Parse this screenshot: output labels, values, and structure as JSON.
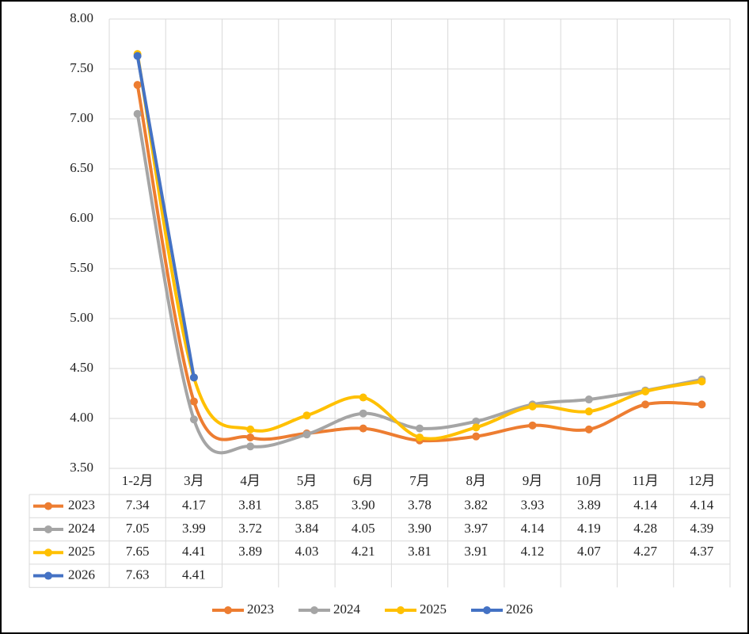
{
  "chart_data": {
    "type": "line",
    "categories": [
      "1-2月",
      "3月",
      "4月",
      "5月",
      "6月",
      "7月",
      "8月",
      "9月",
      "10月",
      "11月",
      "12月"
    ],
    "series": [
      {
        "name": "2023",
        "color": "#ed7d31",
        "values": [
          7.34,
          4.17,
          3.81,
          3.85,
          3.9,
          3.78,
          3.82,
          3.93,
          3.89,
          4.14,
          4.14
        ],
        "value_labels": [
          "7.34",
          "4.17",
          "3.81",
          "3.85",
          "3.90",
          "3.78",
          "3.82",
          "3.93",
          "3.89",
          "4.14",
          "4.14"
        ]
      },
      {
        "name": "2024",
        "color": "#a5a5a5",
        "values": [
          7.05,
          3.99,
          3.72,
          3.84,
          4.05,
          3.9,
          3.97,
          4.14,
          4.19,
          4.28,
          4.39
        ],
        "value_labels": [
          "7.05",
          "3.99",
          "3.72",
          "3.84",
          "4.05",
          "3.90",
          "3.97",
          "4.14",
          "4.19",
          "4.28",
          "4.39"
        ]
      },
      {
        "name": "2025",
        "color": "#ffc000",
        "values": [
          7.65,
          4.41,
          3.89,
          4.03,
          4.21,
          3.81,
          3.91,
          4.12,
          4.07,
          4.27,
          4.37
        ],
        "value_labels": [
          "7.65",
          "4.41",
          "3.89",
          "4.03",
          "4.21",
          "3.81",
          "3.91",
          "4.12",
          "4.07",
          "4.27",
          "4.37"
        ]
      },
      {
        "name": "2026",
        "color": "#4472c4",
        "values": [
          7.63,
          4.41,
          null,
          null,
          null,
          null,
          null,
          null,
          null,
          null,
          null
        ],
        "value_labels": [
          "7.63",
          "4.41",
          null,
          null,
          null,
          null,
          null,
          null,
          null,
          null,
          null
        ]
      }
    ],
    "ylim": [
      3.5,
      8
    ],
    "yticks": [
      {
        "value": 3.5,
        "label": "3.50"
      },
      {
        "value": 4,
        "label": "4.00"
      },
      {
        "value": 4.5,
        "label": "4.50"
      },
      {
        "value": 5,
        "label": "5.00"
      },
      {
        "value": 5.5,
        "label": "5.50"
      },
      {
        "value": 6,
        "label": "6.00"
      },
      {
        "value": 6.5,
        "label": "6.50"
      },
      {
        "value": 7,
        "label": "7.00"
      },
      {
        "value": 7.5,
        "label": "7.50"
      },
      {
        "value": 8,
        "label": "8.00"
      }
    ],
    "grid": true,
    "legend": "bottom"
  }
}
